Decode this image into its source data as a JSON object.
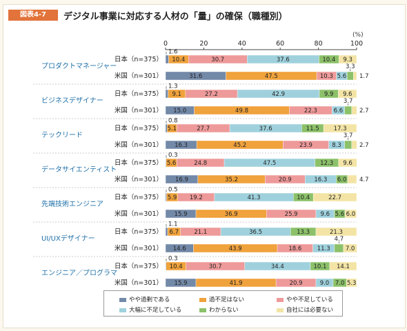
{
  "figure_tag": "図表4-7",
  "title": "デジタル事業に対応する人材の「量」の確保（職種別）",
  "unit": "(%)",
  "chart_data": {
    "type": "bar",
    "stacked": "horizontal-100",
    "xlim": [
      0,
      100
    ],
    "xticks": [
      "0",
      "20",
      "40",
      "60",
      "80",
      "100"
    ],
    "colors": [
      "#7389a8",
      "#f0a23c",
      "#ee9a9a",
      "#9fd1dd",
      "#8cc16a",
      "#f3e4a6"
    ],
    "legend": [
      "やや過剰である",
      "過不足はない",
      "やや不足している",
      "大幅に不足している",
      "わからない",
      "自社には必要ない"
    ],
    "groups": [
      {
        "category": "プロダクトマネージャー",
        "rows": [
          {
            "label": "日本（n=375）",
            "values": [
              1.6,
              10.4,
              30.7,
              37.6,
              10.4,
              9.3
            ]
          },
          {
            "label": "米国（n=301）",
            "values": [
              31.6,
              47.5,
              10.3,
              5.6,
              3.3,
              1.7
            ]
          }
        ]
      },
      {
        "category": "ビジネスデザイナー",
        "rows": [
          {
            "label": "日本（n=375）",
            "values": [
              1.3,
              9.1,
              27.2,
              42.9,
              9.9,
              9.6
            ]
          },
          {
            "label": "米国（n=301）",
            "values": [
              15.0,
              49.8,
              22.3,
              6.6,
              3.7,
              2.7
            ]
          }
        ]
      },
      {
        "category": "テックリード",
        "rows": [
          {
            "label": "日本（n=375）",
            "values": [
              0.8,
              5.1,
              27.7,
              37.6,
              11.5,
              17.3
            ]
          },
          {
            "label": "米国（n=301）",
            "values": [
              16.3,
              45.2,
              23.9,
              8.3,
              3.7,
              2.7
            ]
          }
        ]
      },
      {
        "category": "データサイエンティスト",
        "rows": [
          {
            "label": "日本（n=375）",
            "values": [
              0.3,
              5.6,
              24.8,
              47.5,
              12.3,
              9.6
            ]
          },
          {
            "label": "米国（n=301）",
            "values": [
              16.9,
              35.2,
              20.9,
              16.3,
              6.0,
              4.7
            ]
          }
        ]
      },
      {
        "category": "先端技術エンジニア",
        "rows": [
          {
            "label": "日本（n=375）",
            "values": [
              0.5,
              5.9,
              19.2,
              41.3,
              10.4,
              22.7
            ]
          },
          {
            "label": "米国（n=301）",
            "values": [
              15.9,
              36.9,
              25.9,
              9.6,
              5.6,
              6.0
            ]
          }
        ]
      },
      {
        "category": "UI/UXデザイナー",
        "rows": [
          {
            "label": "日本（n=375）",
            "values": [
              1.1,
              6.7,
              21.1,
              36.5,
              13.3,
              21.3
            ]
          },
          {
            "label": "米国（n=301）",
            "values": [
              14.6,
              43.9,
              18.6,
              11.3,
              4.7,
              7.0
            ]
          }
        ]
      },
      {
        "category": "エンジニア／プログラマ",
        "rows": [
          {
            "label": "日本（n=375）",
            "values": [
              0.3,
              10.4,
              30.7,
              34.4,
              10.1,
              14.1
            ]
          },
          {
            "label": "米国（n=301）",
            "values": [
              15.9,
              41.9,
              20.9,
              9.0,
              7.0,
              5.3
            ]
          }
        ]
      }
    ]
  }
}
